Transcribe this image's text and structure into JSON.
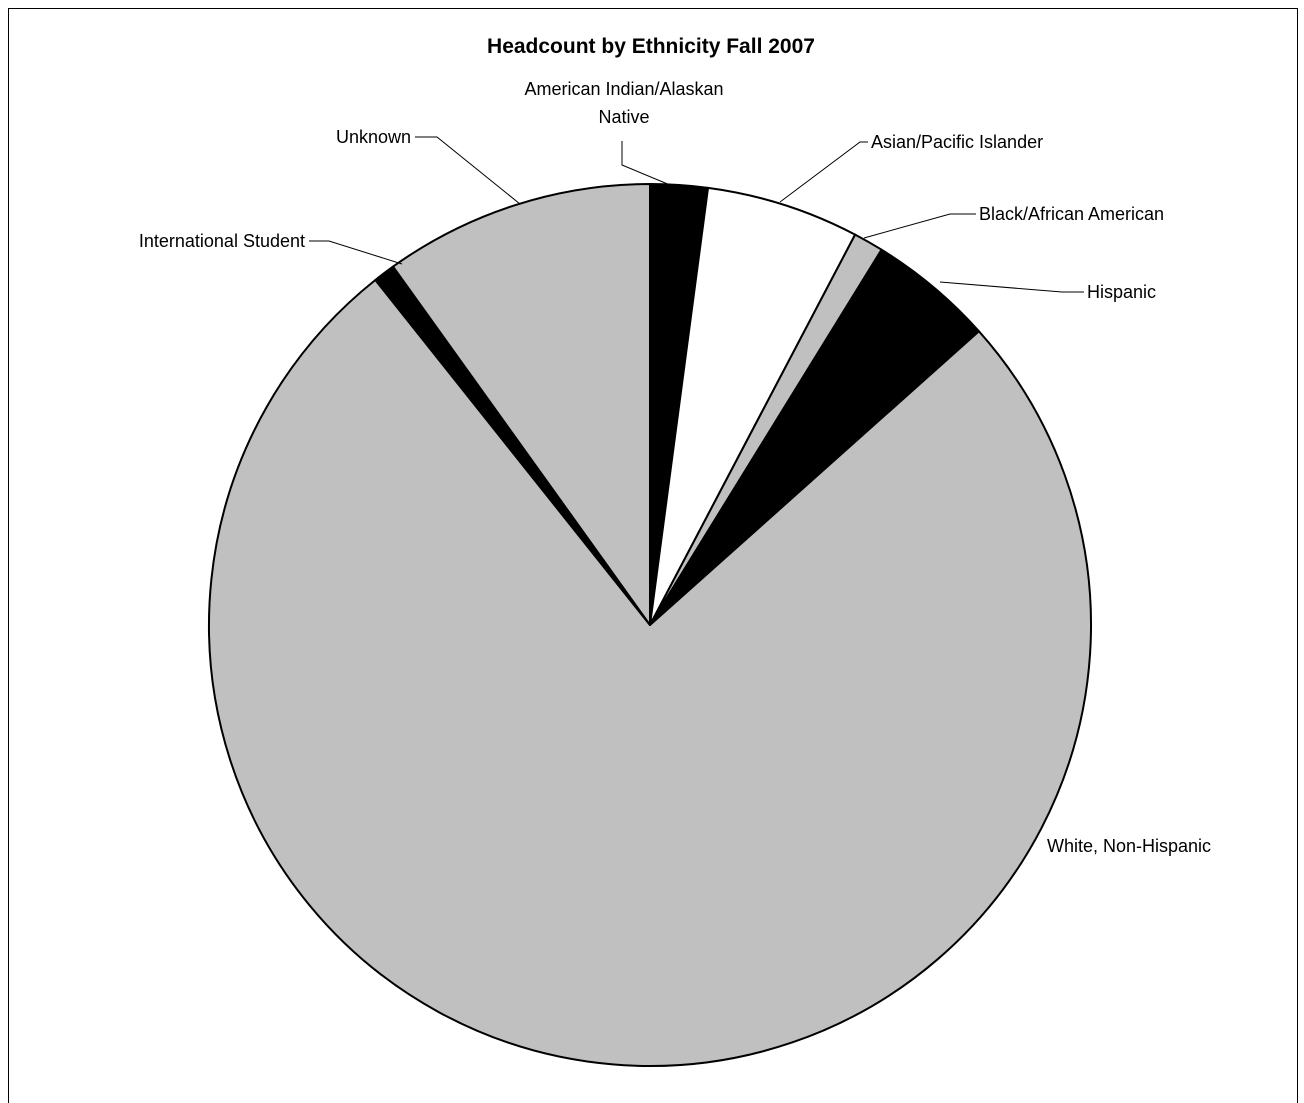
{
  "chart_data": {
    "type": "pie",
    "title": "Headcount by Ethnicity  Fall 2007",
    "start_angle_deg": 0,
    "direction": "clockwise",
    "slices": [
      {
        "label_lines": [
          "American Indian/Alaskan",
          "Native"
        ],
        "value": 2.1,
        "color": "#000000"
      },
      {
        "label_lines": [
          "Asian/Pacific Islander"
        ],
        "value": 5.6,
        "color": "#ffffff"
      },
      {
        "label_lines": [
          "Black/African American"
        ],
        "value": 1.1,
        "color": "#c0c0c0"
      },
      {
        "label_lines": [
          "Hispanic"
        ],
        "value": 4.6,
        "color": "#000000"
      },
      {
        "label_lines": [
          "White, Non-Hispanic"
        ],
        "value": 75.9,
        "color": "#c0c0c0"
      },
      {
        "label_lines": [
          "International Student"
        ],
        "value": 0.8,
        "color": "#000000"
      },
      {
        "label_lines": [
          "Unknown"
        ],
        "value": 9.9,
        "color": "#c0c0c0"
      }
    ]
  }
}
